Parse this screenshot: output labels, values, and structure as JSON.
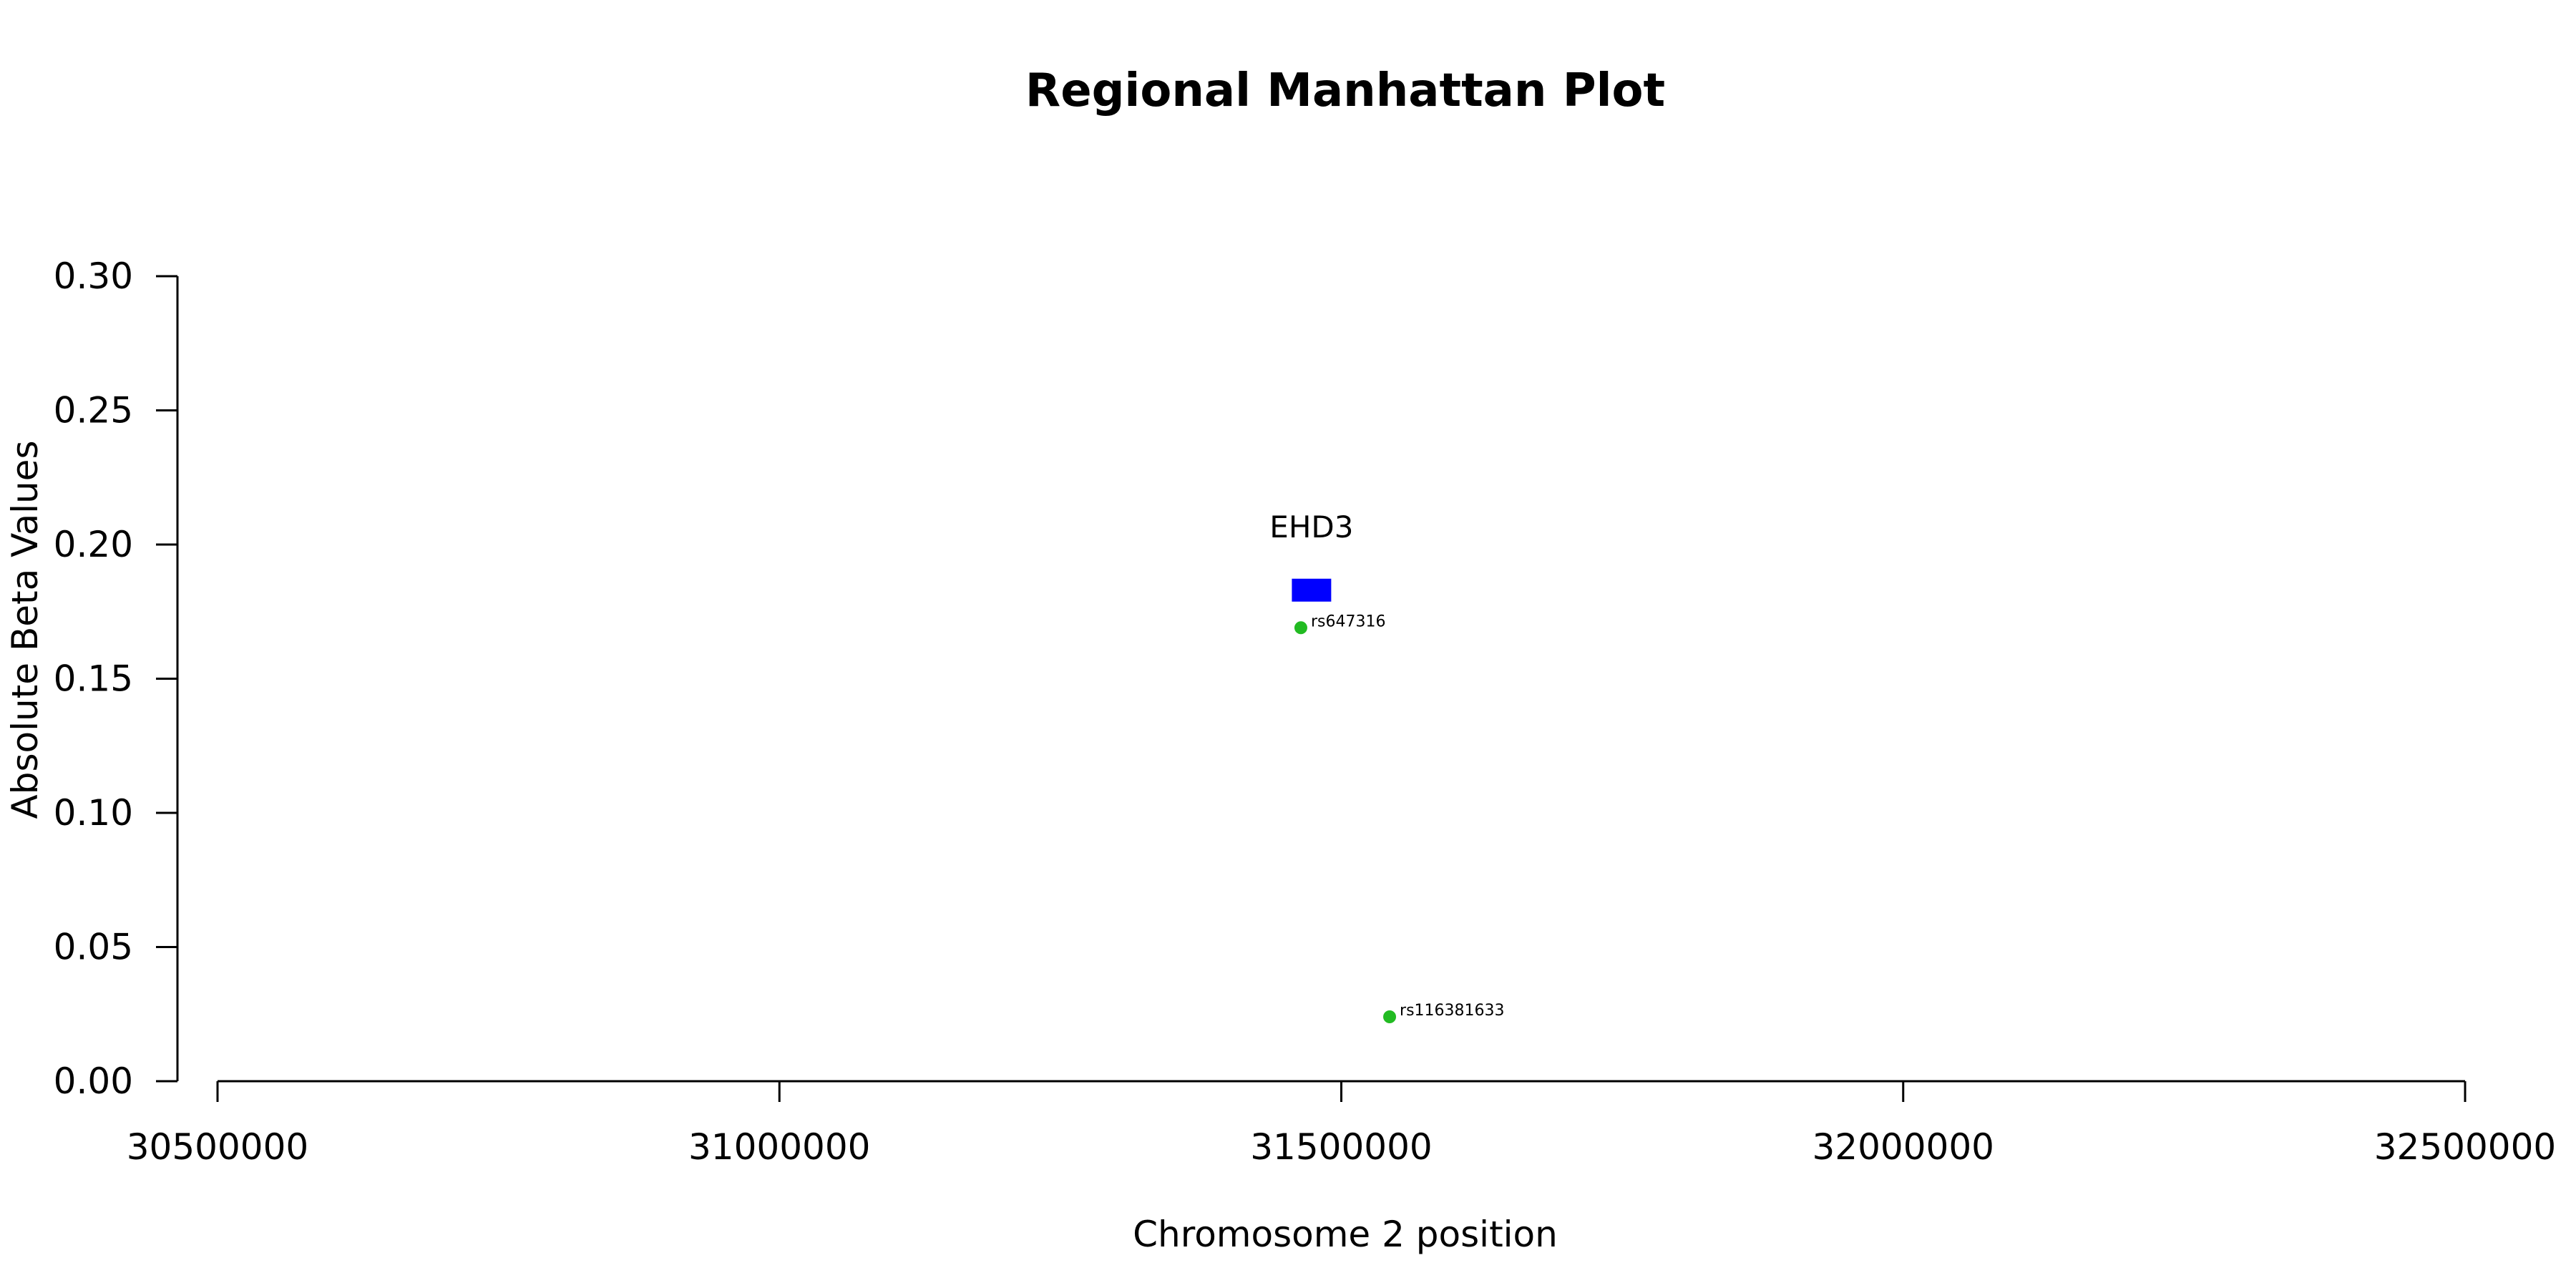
{
  "chart_data": {
    "type": "scatter",
    "title": "Regional Manhattan Plot",
    "xlabel": "Chromosome 2 position",
    "ylabel": "Absolute Beta Values",
    "xlim": [
      30500000,
      32500000
    ],
    "ylim": [
      0,
      0.3
    ],
    "x_ticks": [
      30500000,
      31000000,
      31500000,
      32000000,
      32500000
    ],
    "x_tick_labels": [
      "30500000",
      "31000000",
      "31500000",
      "32000000",
      "32500000"
    ],
    "y_ticks": [
      0.0,
      0.05,
      0.1,
      0.15,
      0.2,
      0.25,
      0.3
    ],
    "y_tick_labels": [
      "0.00",
      "0.05",
      "0.10",
      "0.15",
      "0.20",
      "0.25",
      "0.30"
    ],
    "grid": false,
    "points": [
      {
        "label": "rs647316",
        "x": 31464000,
        "y": 0.169,
        "color": "#22bb22"
      },
      {
        "label": "rs116381633",
        "x": 31543000,
        "y": 0.024,
        "color": "#22bb22"
      }
    ],
    "genes": [
      {
        "name": "EHD3",
        "start": 31456000,
        "end": 31491000,
        "y": 0.183,
        "color": "#0000ff"
      }
    ]
  }
}
